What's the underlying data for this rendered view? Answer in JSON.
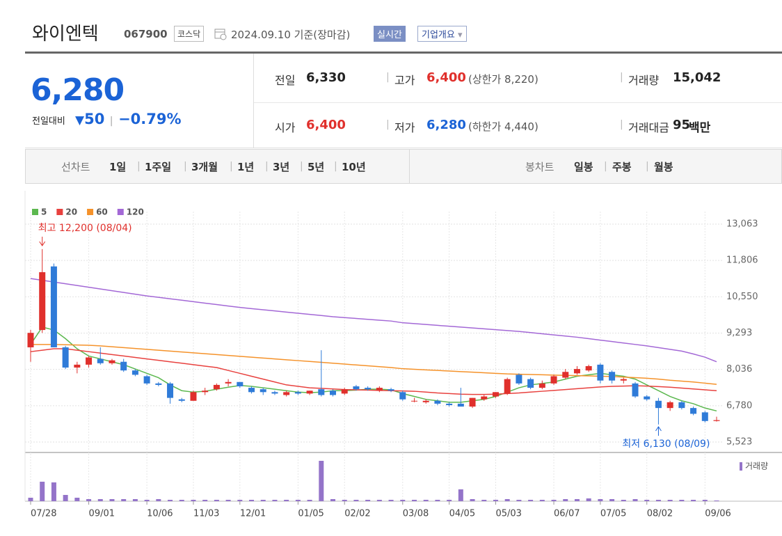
{
  "header": {
    "name": "와이엔텍",
    "code": "067900",
    "market": "코스닥",
    "date": "2024.09.10",
    "basis": "기준(장마감)",
    "realtime": "실시간",
    "overview": "기업개요"
  },
  "price": {
    "current": "6,280",
    "change_label": "전일대비",
    "change": "50",
    "change_rate": "−0.79%"
  },
  "summary": [
    {
      "label": "전일",
      "value": "6,330"
    },
    {
      "label": "고가",
      "value": "6,400",
      "note": "(상한가 8,220)"
    },
    {
      "label": "거래량",
      "value": "15,042"
    },
    {
      "label": "시가",
      "value": "6,400"
    },
    {
      "label": "저가",
      "value": "6,280",
      "note": "(하한가 4,440)"
    },
    {
      "label": "거래대금",
      "value": "95",
      "unit": "백만"
    }
  ],
  "tabs": {
    "line_label": "선차트",
    "line": [
      "1일",
      "1주일",
      "3개월",
      "1년",
      "3년",
      "5년",
      "10년"
    ],
    "candle_label": "봉차트",
    "candle": [
      "일봉",
      "주봉",
      "월봉"
    ]
  },
  "chart_data": {
    "type": "candlestick",
    "categories": [
      "07/28",
      null,
      null,
      null,
      null,
      "09/01",
      null,
      null,
      null,
      null,
      "10/06",
      null,
      null,
      null,
      "11/03",
      null,
      null,
      null,
      "12/01",
      null,
      null,
      null,
      null,
      "01/05",
      null,
      null,
      null,
      "02/02",
      null,
      null,
      null,
      null,
      "03/08",
      null,
      null,
      null,
      "04/05",
      null,
      null,
      null,
      "05/03",
      null,
      null,
      null,
      null,
      "06/07",
      null,
      null,
      null,
      "07/05",
      null,
      null,
      null,
      "08/02",
      null,
      null,
      null,
      null,
      "09/06",
      null
    ],
    "open": [
      8800,
      9400,
      11600,
      8800,
      8100,
      8200,
      8400,
      8250,
      8300,
      8000,
      7800,
      7550,
      7550,
      7000,
      6950,
      7250,
      7350,
      7550,
      7600,
      7400,
      7350,
      7250,
      7150,
      7250,
      7200,
      7350,
      7300,
      7200,
      7450,
      7400,
      7300,
      7350,
      7250,
      6950,
      6900,
      6950,
      6850,
      6850,
      6750,
      7000,
      7100,
      7200,
      7850,
      7700,
      7400,
      7550,
      7750,
      7900,
      8000,
      8200,
      7950,
      7650,
      7550,
      7100,
      6950,
      6700,
      6900,
      6700,
      6550,
      6250
    ],
    "high": [
      9400,
      12200,
      11700,
      8850,
      8300,
      8500,
      8800,
      8400,
      8400,
      8050,
      7850,
      7600,
      7600,
      7050,
      7300,
      7400,
      7550,
      7700,
      7600,
      7450,
      7400,
      7300,
      7300,
      7300,
      7300,
      8700,
      7350,
      7400,
      7500,
      7450,
      7450,
      7400,
      7300,
      7050,
      7000,
      7000,
      6900,
      7400,
      7050,
      7150,
      7250,
      7750,
      7900,
      7750,
      7650,
      7850,
      8050,
      8150,
      8200,
      8250,
      8000,
      7750,
      7600,
      7150,
      7050,
      6950,
      6950,
      6750,
      6600,
      6400
    ],
    "low": [
      8300,
      9300,
      8800,
      8050,
      7900,
      8100,
      8200,
      8200,
      7950,
      7800,
      7500,
      7450,
      6850,
      6900,
      6950,
      7150,
      7300,
      7450,
      7400,
      7200,
      7150,
      7150,
      7100,
      7150,
      7150,
      7100,
      7100,
      7150,
      7300,
      7300,
      7250,
      7250,
      6950,
      6900,
      6850,
      6800,
      6750,
      6750,
      6700,
      6950,
      7050,
      7150,
      7500,
      7350,
      7350,
      7500,
      7700,
      7850,
      7950,
      7550,
      7550,
      7550,
      7050,
      6950,
      6130,
      6600,
      6650,
      6450,
      6200,
      6230
    ],
    "close": [
      9300,
      11400,
      8800,
      8100,
      8200,
      8450,
      8250,
      8350,
      8000,
      7850,
      7550,
      7500,
      7050,
      6950,
      7250,
      7300,
      7500,
      7600,
      7450,
      7250,
      7250,
      7200,
      7250,
      7200,
      7300,
      7150,
      7150,
      7350,
      7350,
      7350,
      7400,
      7300,
      7000,
      6950,
      6950,
      6850,
      6800,
      6750,
      7050,
      7100,
      7250,
      7700,
      7550,
      7400,
      7550,
      7800,
      7950,
      8050,
      8150,
      7650,
      7650,
      7700,
      7100,
      7000,
      6700,
      6900,
      6700,
      6500,
      6250,
      6280
    ],
    "up_color": "#e0302c",
    "down_color": "#2f7bd8",
    "series": [
      {
        "name": "5",
        "color": "#5cb84f",
        "values": [
          8900,
          9500,
          9400,
          9100,
          8750,
          8500,
          8400,
          8300,
          8200,
          8050,
          7900,
          7750,
          7500,
          7300,
          7250,
          7280,
          7350,
          7420,
          7480,
          7450,
          7400,
          7350,
          7300,
          7250,
          7230,
          7250,
          7300,
          7300,
          7320,
          7350,
          7350,
          7330,
          7200,
          7100,
          7000,
          6950,
          6900,
          6900,
          6950,
          7000,
          7100,
          7250,
          7400,
          7500,
          7550,
          7600,
          7700,
          7800,
          7850,
          7900,
          7850,
          7800,
          7700,
          7500,
          7300,
          7100,
          6950,
          6850,
          6700,
          6600
        ]
      },
      {
        "name": "20",
        "color": "#e8413e",
        "values": [
          8650,
          8700,
          8750,
          8750,
          8700,
          8650,
          8600,
          8550,
          8500,
          8450,
          8400,
          8350,
          8300,
          8250,
          8200,
          8150,
          8100,
          8000,
          7900,
          7800,
          7700,
          7600,
          7500,
          7450,
          7400,
          7380,
          7360,
          7340,
          7330,
          7320,
          7310,
          7300,
          7290,
          7280,
          7250,
          7220,
          7200,
          7180,
          7170,
          7170,
          7180,
          7200,
          7220,
          7250,
          7280,
          7310,
          7340,
          7370,
          7400,
          7430,
          7450,
          7460,
          7470,
          7460,
          7440,
          7420,
          7390,
          7360,
          7330,
          7300
        ]
      },
      {
        "name": "60",
        "color": "#f5922a",
        "values": [
          8900,
          8900,
          8900,
          8890,
          8880,
          8870,
          8850,
          8820,
          8790,
          8760,
          8730,
          8700,
          8670,
          8640,
          8610,
          8580,
          8550,
          8520,
          8490,
          8460,
          8430,
          8400,
          8370,
          8340,
          8310,
          8280,
          8250,
          8220,
          8190,
          8160,
          8130,
          8100,
          8060,
          8040,
          8020,
          8000,
          7980,
          7960,
          7940,
          7920,
          7900,
          7880,
          7870,
          7860,
          7850,
          7840,
          7830,
          7820,
          7810,
          7800,
          7790,
          7770,
          7750,
          7730,
          7700,
          7660,
          7630,
          7600,
          7560,
          7520
        ]
      },
      {
        "name": "120",
        "color": "#a368d6",
        "values": [
          11180,
          11120,
          11060,
          11000,
          10940,
          10880,
          10820,
          10760,
          10700,
          10640,
          10580,
          10530,
          10480,
          10430,
          10380,
          10330,
          10280,
          10230,
          10180,
          10140,
          10100,
          10060,
          10020,
          9980,
          9940,
          9900,
          9860,
          9830,
          9800,
          9770,
          9740,
          9710,
          9650,
          9620,
          9590,
          9560,
          9530,
          9500,
          9470,
          9440,
          9410,
          9380,
          9350,
          9310,
          9270,
          9230,
          9190,
          9150,
          9100,
          9050,
          9000,
          8950,
          8900,
          8850,
          8790,
          8730,
          8670,
          8570,
          8460,
          8300
        ]
      }
    ],
    "volume": {
      "name": "거래량",
      "color": "#9474c9",
      "values": [
        5,
        28,
        27,
        9,
        5,
        3,
        3,
        3,
        3,
        3,
        2,
        3,
        2,
        2,
        2,
        2,
        2,
        2,
        2,
        2,
        2,
        2,
        2,
        2,
        2,
        58,
        3,
        2,
        2,
        2,
        2,
        2,
        2,
        2,
        2,
        2,
        2,
        17,
        3,
        2,
        2,
        3,
        2,
        2,
        2,
        2,
        3,
        3,
        4,
        3,
        3,
        2,
        3,
        2,
        2,
        2,
        2,
        2,
        2,
        1
      ]
    },
    "vlim": [
      0,
      60
    ],
    "ylim": [
      5523,
      13063
    ],
    "yticks": [
      {
        "value": 5523,
        "label": "5,523"
      },
      {
        "value": 6780,
        "label": "6,780"
      },
      {
        "value": 8036,
        "label": "8,036"
      },
      {
        "value": 9293,
        "label": "9,293"
      },
      {
        "value": 10550,
        "label": "10,550"
      },
      {
        "value": 11806,
        "label": "11,806"
      },
      {
        "value": 13063,
        "label": "13,063"
      }
    ],
    "grid": true,
    "annotations": [
      "최고 12,200 (08/04)",
      "최저 6,130 (08/09)"
    ]
  }
}
